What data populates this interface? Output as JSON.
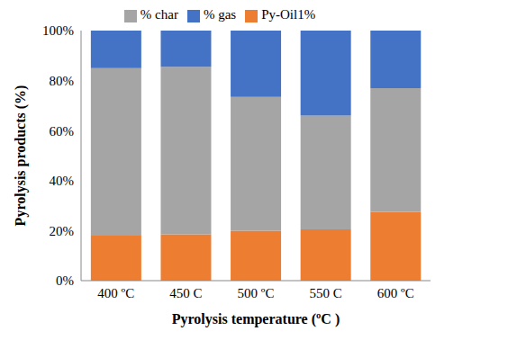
{
  "chart_data": {
    "type": "bar",
    "stacked": true,
    "x_label": "Pyrolysis temperature (ºC )",
    "y_label": "Pyrolysis products (%)",
    "categories": [
      "400 ºC",
      "450 C",
      "500 ºC",
      "550 C",
      "600 ºC"
    ],
    "series": [
      {
        "name": "Py-Oil1%",
        "color": "#ED7D31",
        "values": [
          18,
          18.5,
          20,
          20.5,
          27.5
        ]
      },
      {
        "name": "% char",
        "color": "#A5A5A5",
        "values": [
          67,
          67,
          53.5,
          45.5,
          49.5
        ]
      },
      {
        "name": "% gas",
        "color": "#4472C4",
        "values": [
          15,
          14.5,
          26.5,
          34,
          23
        ]
      }
    ],
    "ylim": [
      0,
      100
    ],
    "yticks": [
      {
        "value": 0,
        "label": "0%"
      },
      {
        "value": 20,
        "label": "20%"
      },
      {
        "value": 40,
        "label": "40%"
      },
      {
        "value": 60,
        "label": "60%"
      },
      {
        "value": 80,
        "label": "80%"
      },
      {
        "value": 100,
        "label": "100%"
      }
    ],
    "grid": false,
    "legend": "top"
  }
}
